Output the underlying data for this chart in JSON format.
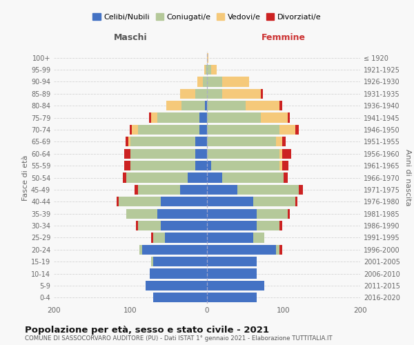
{
  "age_groups_bottom_to_top": [
    "0-4",
    "5-9",
    "10-14",
    "15-19",
    "20-24",
    "25-29",
    "30-34",
    "35-39",
    "40-44",
    "45-49",
    "50-54",
    "55-59",
    "60-64",
    "65-69",
    "70-74",
    "75-79",
    "80-84",
    "85-89",
    "90-94",
    "95-99",
    "100+"
  ],
  "birth_years_bottom_to_top": [
    "2016-2020",
    "2011-2015",
    "2006-2010",
    "2001-2005",
    "1996-2000",
    "1991-1995",
    "1986-1990",
    "1981-1985",
    "1976-1980",
    "1971-1975",
    "1966-1970",
    "1961-1965",
    "1956-1960",
    "1951-1955",
    "1946-1950",
    "1941-1945",
    "1936-1940",
    "1931-1935",
    "1926-1930",
    "1921-1925",
    "≤ 1920"
  ],
  "colors": {
    "celibi": "#4472c4",
    "coniugati": "#b5c99a",
    "vedovi": "#f5c97a",
    "divorziati": "#cc2222"
  },
  "maschi": {
    "celibi": [
      70,
      80,
      75,
      70,
      85,
      55,
      60,
      65,
      60,
      35,
      25,
      15,
      15,
      15,
      10,
      10,
      3,
      0,
      0,
      0,
      0
    ],
    "coniugati": [
      0,
      0,
      0,
      3,
      3,
      15,
      30,
      40,
      55,
      55,
      80,
      85,
      85,
      85,
      80,
      55,
      30,
      15,
      5,
      2,
      0
    ],
    "vedovi": [
      0,
      0,
      0,
      0,
      0,
      0,
      0,
      0,
      0,
      0,
      0,
      0,
      0,
      3,
      8,
      8,
      20,
      20,
      8,
      2,
      0
    ],
    "divorziati": [
      0,
      0,
      0,
      0,
      0,
      3,
      3,
      0,
      3,
      5,
      5,
      8,
      8,
      3,
      3,
      3,
      0,
      0,
      0,
      0,
      0
    ]
  },
  "femmine": {
    "celibi": [
      65,
      75,
      65,
      65,
      90,
      60,
      65,
      65,
      60,
      40,
      20,
      5,
      0,
      0,
      0,
      0,
      0,
      0,
      0,
      0,
      0
    ],
    "coniugati": [
      0,
      0,
      0,
      0,
      5,
      15,
      30,
      40,
      55,
      80,
      80,
      90,
      95,
      90,
      95,
      70,
      50,
      20,
      20,
      5,
      0
    ],
    "vedovi": [
      0,
      0,
      0,
      0,
      0,
      0,
      0,
      0,
      0,
      0,
      0,
      3,
      3,
      8,
      20,
      35,
      45,
      50,
      35,
      8,
      2
    ],
    "divorziati": [
      0,
      0,
      0,
      0,
      3,
      0,
      3,
      3,
      3,
      5,
      5,
      8,
      12,
      5,
      5,
      3,
      3,
      3,
      0,
      0,
      0
    ]
  },
  "title": "Popolazione per età, sesso e stato civile - 2021",
  "subtitle": "COMUNE DI SASSOCORVARO AUDITORE (PU) - Dati ISTAT 1° gennaio 2021 - Elaborazione TUTTITALIA.IT",
  "xlabel_maschi": "Maschi",
  "xlabel_femmine": "Femmine",
  "ylabel_left": "Fasce di età",
  "ylabel_right": "Anni di nascita",
  "xlim": 200,
  "legend_labels": [
    "Celibi/Nubili",
    "Coniugati/e",
    "Vedovi/e",
    "Divorziati/e"
  ],
  "background_color": "#f8f8f8",
  "plot_bg": "#f8f8f8"
}
